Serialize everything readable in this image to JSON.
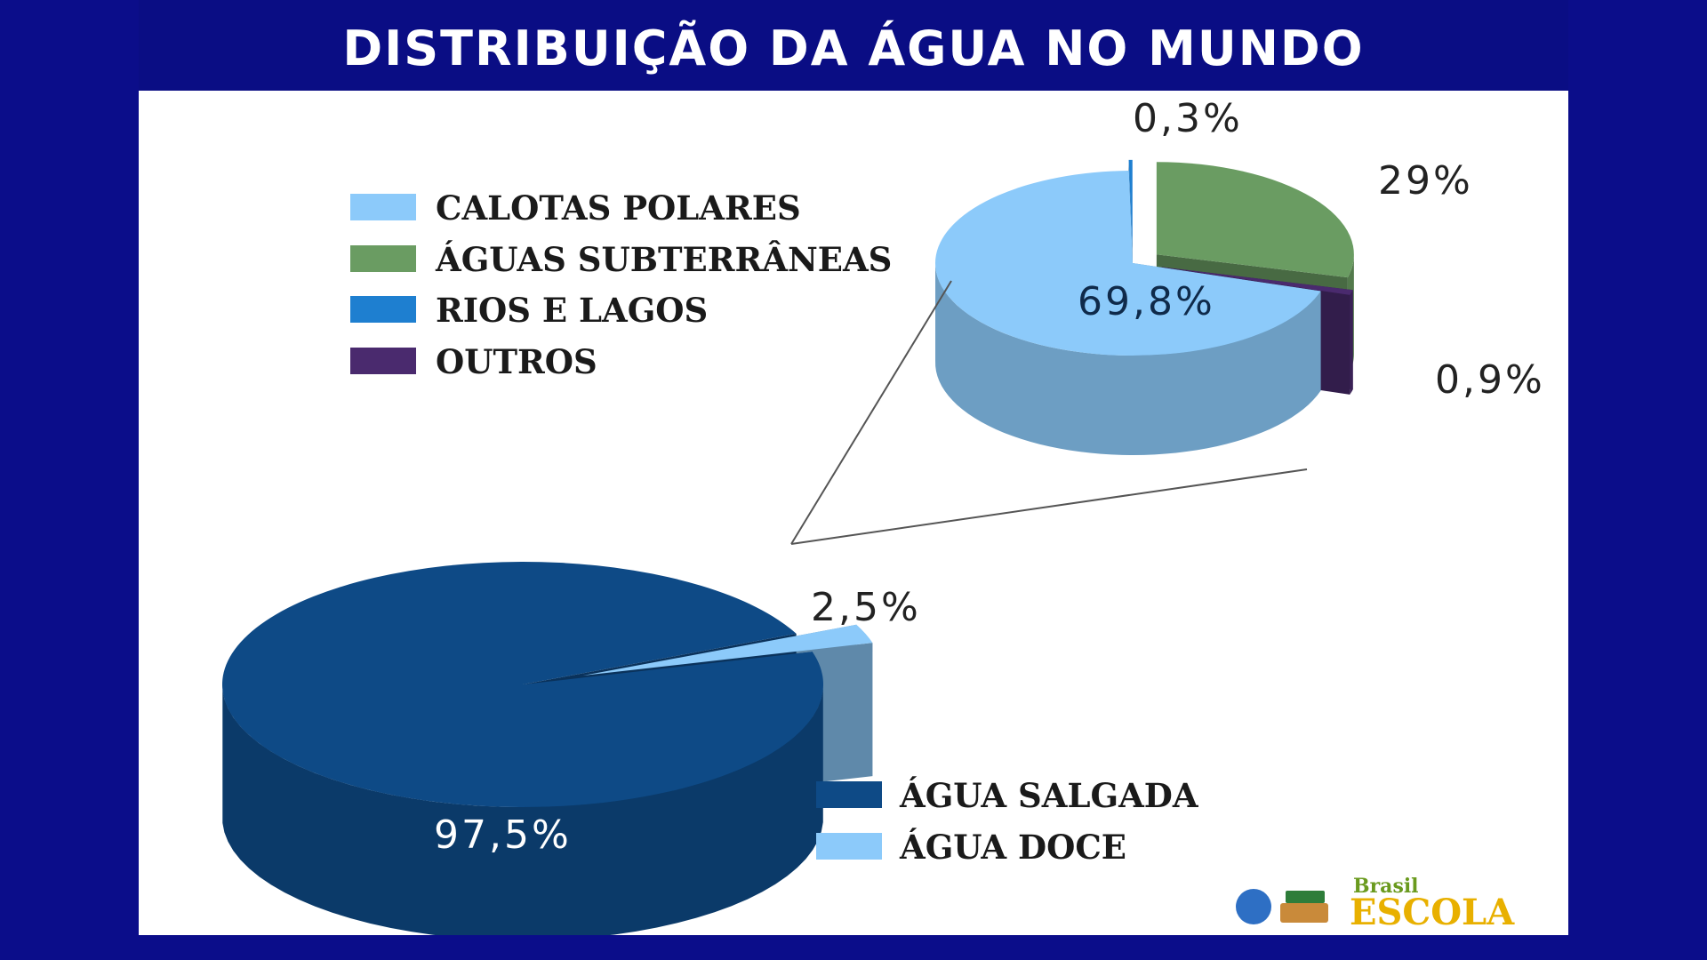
{
  "title": "DISTRIBUIÇÃO DA ÁGUA NO MUNDO",
  "colors": {
    "background": "#0b0d8a",
    "salgada": "#0e4a86",
    "doce": "#8ccafa",
    "calotas": "#8ccafa",
    "subterraneas": "#6a9c62",
    "rios": "#1e7fd0",
    "outros": "#4a2a6e"
  },
  "chart_data": [
    {
      "type": "pie",
      "categories": [
        "ÁGUA SALGADA",
        "ÁGUA DOCE"
      ],
      "values": [
        97.5,
        2.5
      ],
      "labels": [
        "97,5%",
        "2,5%"
      ]
    },
    {
      "type": "pie",
      "categories": [
        "CALOTAS POLARES",
        "ÁGUAS SUBTERRÂNEAS",
        "RIOS E LAGOS",
        "OUTROS"
      ],
      "values": [
        69.8,
        29,
        0.3,
        0.9
      ],
      "labels": [
        "69,8%",
        "29%",
        "0,3%",
        "0,9%"
      ]
    }
  ],
  "logo": {
    "small": "Brasil",
    "big": "ESCOLA"
  }
}
